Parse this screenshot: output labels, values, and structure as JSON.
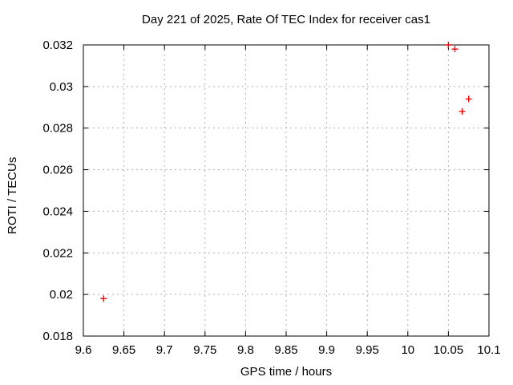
{
  "title": "Day 221 of 2025, Rate Of TEC Index for receiver cas1",
  "chart_data": {
    "type": "scatter",
    "title": "Day 221 of 2025, Rate Of TEC Index for receiver cas1",
    "xlabel": "GPS time / hours",
    "ylabel": "ROTI / TECUs",
    "xlim": [
      9.6,
      10.1
    ],
    "ylim": [
      0.018,
      0.032
    ],
    "xticks": [
      9.6,
      9.65,
      9.7,
      9.75,
      9.8,
      9.85,
      9.9,
      9.95,
      10,
      10.05,
      10.1
    ],
    "xtick_labels": [
      "9.6",
      "9.65",
      "9.7",
      "9.75",
      "9.8",
      "9.85",
      "9.9",
      "9.95",
      "10",
      "10.05",
      "10.1"
    ],
    "yticks": [
      0.018,
      0.02,
      0.022,
      0.024,
      0.026,
      0.028,
      0.03,
      0.032
    ],
    "ytick_labels": [
      "0.018",
      "0.02",
      "0.022",
      "0.024",
      "0.026",
      "0.028",
      "0.03",
      "0.032"
    ],
    "grid": true,
    "legend": "none",
    "series": [
      {
        "name": "ROTI",
        "marker": "plus",
        "color": "#ff0000",
        "points": [
          [
            9.625,
            0.0198
          ],
          [
            10.05,
            0.032
          ],
          [
            10.058,
            0.0318
          ],
          [
            10.067,
            0.0288
          ],
          [
            10.075,
            0.0294
          ]
        ]
      }
    ]
  },
  "colors": {
    "background": "#ffffff",
    "text": "#000000",
    "axis": "#000000",
    "grid": "#b0b0b0",
    "marker": "#ff0000"
  }
}
